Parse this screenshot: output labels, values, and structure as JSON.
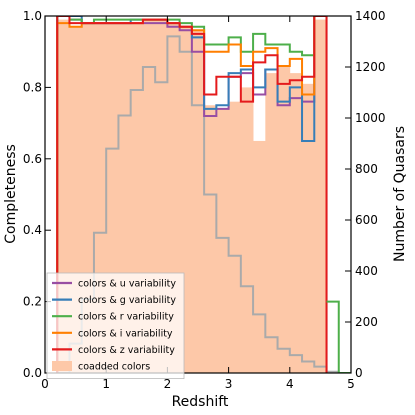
{
  "chart_data": {
    "type": "line",
    "xlabel": "Redshift",
    "ylabel_left": "Completeness",
    "ylabel_right": "Number of Quasars",
    "xlim": [
      0,
      5
    ],
    "ylim_left": [
      0,
      1.0
    ],
    "ylim_right": [
      0,
      1400
    ],
    "x_ticks": [
      0,
      1,
      2,
      3,
      4,
      5
    ],
    "y_left_ticks": [
      0.0,
      0.2,
      0.4,
      0.6,
      0.8,
      1.0
    ],
    "y_right_ticks": [
      0,
      200,
      400,
      600,
      800,
      1000,
      1200,
      1400
    ],
    "legend_position": "lower-left",
    "bin_edges": [
      0.2,
      0.4,
      0.6,
      0.8,
      1.0,
      1.2,
      1.4,
      1.6,
      1.8,
      2.0,
      2.2,
      2.4,
      2.6,
      2.8,
      3.0,
      3.2,
      3.4,
      3.6,
      3.8,
      4.0,
      4.2,
      4.4,
      4.6
    ],
    "coadded": {
      "name": "coadded colors",
      "color": "#fdc8a8",
      "values": [
        0.99,
        0.97,
        0.98,
        0.98,
        0.98,
        0.98,
        0.98,
        0.99,
        0.99,
        0.98,
        0.97,
        0.96,
        0.75,
        0.74,
        0.76,
        0.8,
        0.65,
        0.84,
        0.86,
        0.84,
        0.81,
        0.99
      ]
    },
    "series": [
      {
        "name": "colors & u variability",
        "color": "#984ea3",
        "values": [
          1.0,
          0.99,
          0.98,
          0.98,
          0.98,
          0.98,
          0.98,
          0.98,
          0.98,
          0.97,
          0.96,
          0.9,
          0.72,
          0.74,
          0.83,
          0.84,
          0.78,
          0.85,
          0.75,
          0.77,
          0.76,
          1.0
        ]
      },
      {
        "name": "colors & g variability",
        "color": "#377eb8",
        "values": [
          1.0,
          1.0,
          0.98,
          0.98,
          0.98,
          0.98,
          0.99,
          0.99,
          0.99,
          0.98,
          0.97,
          0.94,
          0.74,
          0.75,
          0.84,
          0.85,
          0.8,
          0.85,
          0.76,
          0.8,
          0.65,
          1.0
        ]
      },
      {
        "name": "colors & r variability",
        "color": "#4daf4a",
        "values": [
          1.0,
          0.99,
          0.98,
          0.99,
          0.99,
          0.99,
          0.99,
          0.99,
          0.99,
          0.99,
          0.98,
          0.97,
          0.92,
          0.92,
          0.94,
          0.9,
          0.95,
          0.92,
          0.92,
          0.9,
          0.89,
          1.0
        ]
      },
      {
        "name": "colors & i variability",
        "color": "#ff7f00",
        "values": [
          0.98,
          0.97,
          0.98,
          0.98,
          0.98,
          0.98,
          0.98,
          0.99,
          0.99,
          0.98,
          0.97,
          0.96,
          0.9,
          0.9,
          0.92,
          0.86,
          0.9,
          0.91,
          0.86,
          0.88,
          0.78,
          1.0
        ]
      },
      {
        "name": "colors & z variability",
        "color": "#e41a1c",
        "values": [
          1.0,
          0.98,
          0.98,
          0.98,
          0.98,
          0.98,
          0.98,
          0.99,
          0.99,
          0.98,
          0.97,
          0.95,
          0.78,
          0.83,
          0.83,
          0.76,
          0.87,
          0.89,
          0.81,
          0.82,
          0.83,
          1.0
        ]
      }
    ],
    "number_of_quasars": {
      "color": "#aaaaaa",
      "edges": [
        0.2,
        0.4,
        0.6,
        0.8,
        1.0,
        1.2,
        1.4,
        1.6,
        1.8,
        2.0,
        2.2,
        2.4,
        2.6,
        2.8,
        3.0,
        3.2,
        3.4,
        3.6,
        3.8,
        4.0,
        4.2,
        4.4,
        4.6,
        4.8,
        5.0
      ],
      "values": [
        0,
        115,
        290,
        550,
        880,
        1010,
        1110,
        1200,
        1140,
        1320,
        1260,
        1050,
        700,
        530,
        460,
        340,
        230,
        140,
        95,
        70,
        45,
        25,
        5,
        0
      ]
    },
    "extra_step": {
      "color": "#4daf4a",
      "edges": [
        4.6,
        4.8,
        5.0
      ],
      "values": [
        0.2,
        0.0
      ]
    }
  }
}
